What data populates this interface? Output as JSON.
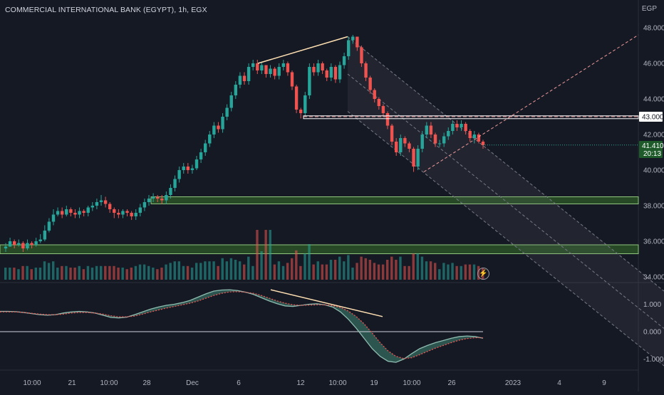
{
  "header": {
    "title": "COMMERCIAL INTERNATIONAL BANK (EGYPT), 1h, EGX",
    "currency": "EGP"
  },
  "price_axis": {
    "ticks": [
      "48.000",
      "46.000",
      "44.000",
      "42.000",
      "40.000",
      "38.000",
      "36.000",
      "34.000"
    ],
    "marker_43": "43.000",
    "last_price": "41.410",
    "countdown": "20:13"
  },
  "osc_axis": {
    "ticks": [
      "1.000",
      "0.000",
      "-1.000"
    ]
  },
  "time_axis": {
    "ticks": [
      "10:00",
      "21",
      "10:00",
      "28",
      "Dec",
      "6",
      "12",
      "10:00",
      "19",
      "10:00",
      "26",
      "2023",
      "4",
      "9"
    ]
  },
  "colors": {
    "background": "#151924",
    "up": "#26a69a",
    "down": "#ef5350",
    "zone_fill": "#2e5a26",
    "zone_border": "#8fc57c",
    "last_price_bg": "#1e5a2a",
    "channel": "#787b86",
    "trendline": "#ffe0b2",
    "resistance": "#ef9a9a",
    "osc_fill": "#2f5c55"
  },
  "icons": {
    "alert": "lightning-icon"
  },
  "chart_data": [
    {
      "type": "candlestick",
      "title": "COMMERCIAL INTERNATIONAL BANK (EGYPT), 1h, EGX",
      "ylabel": "EGP",
      "ylim": [
        33.9,
        48.3
      ],
      "grid": false,
      "x_ticks": [
        "10:00",
        "21",
        "10:00",
        "28",
        "Dec",
        "6",
        "12",
        "10:00",
        "19",
        "10:00",
        "26",
        "2023",
        "4",
        "9"
      ],
      "close": [
        35.7,
        36.0,
        35.8,
        35.9,
        35.6,
        35.9,
        35.8,
        36.0,
        36.1,
        36.6,
        37.1,
        37.5,
        37.7,
        37.5,
        37.8,
        37.6,
        37.5,
        37.7,
        37.6,
        37.9,
        38.0,
        38.2,
        38.3,
        38.1,
        37.8,
        37.6,
        37.5,
        37.7,
        37.6,
        37.4,
        37.6,
        37.9,
        38.2,
        38.4,
        38.5,
        38.4,
        38.3,
        38.6,
        39.0,
        39.5,
        40.0,
        40.2,
        40.0,
        40.1,
        40.6,
        41.0,
        41.5,
        42.0,
        42.5,
        42.3,
        43.0,
        43.5,
        44.2,
        44.8,
        45.3,
        45.0,
        45.8,
        46.0,
        45.6,
        45.9,
        45.4,
        45.7,
        45.3,
        45.8,
        46.0,
        45.5,
        44.7,
        43.4,
        43.2,
        44.2,
        45.8,
        45.5,
        46.0,
        45.6,
        45.2,
        45.8,
        45.1,
        45.9,
        46.4,
        47.3,
        47.5,
        46.9,
        46.0,
        45.2,
        44.5,
        44.0,
        43.6,
        43.2,
        42.5,
        41.6,
        41.0,
        41.8,
        41.5,
        41.2,
        40.2,
        41.2,
        42.0,
        42.5,
        42.0,
        41.5,
        41.5,
        41.9,
        42.2,
        42.6,
        42.4,
        42.6,
        42.2,
        41.8,
        42.0,
        41.6,
        41.4
      ],
      "high": [
        35.9,
        36.2,
        36.1,
        36.1,
        36.0,
        36.1,
        36.0,
        36.2,
        36.4,
        36.9,
        37.3,
        37.8,
        37.9,
        37.9,
        38.0,
        37.9,
        37.8,
        37.9,
        37.8,
        38.0,
        38.2,
        38.4,
        38.6,
        38.5,
        38.2,
        37.9,
        37.8,
        37.8,
        37.8,
        37.7,
        37.8,
        38.1,
        38.4,
        38.6,
        38.7,
        38.6,
        38.6,
        38.8,
        39.2,
        39.7,
        40.2,
        40.4,
        40.4,
        40.3,
        40.8,
        41.2,
        41.7,
        42.2,
        42.7,
        42.7,
        43.2,
        43.7,
        44.4,
        45.0,
        45.5,
        45.5,
        46.0,
        46.2,
        46.2,
        46.1,
        45.9,
        45.9,
        45.8,
        46.0,
        46.2,
        46.1,
        45.6,
        44.8,
        43.5,
        44.4,
        46.0,
        46.0,
        46.2,
        46.1,
        45.7,
        46.0,
        45.9,
        46.1,
        46.6,
        47.5,
        47.6,
        47.5,
        47.0,
        46.1,
        45.3,
        44.6,
        44.1,
        43.7,
        43.3,
        42.6,
        41.8,
        42.0,
        41.9,
        41.6,
        41.3,
        41.4,
        42.2,
        42.7,
        42.7,
        42.1,
        41.7,
        42.1,
        42.4,
        42.8,
        42.8,
        42.8,
        42.7,
        42.3,
        42.2,
        42.1,
        41.7
      ],
      "low": [
        35.4,
        35.7,
        35.6,
        35.7,
        35.4,
        35.5,
        35.6,
        35.7,
        35.9,
        36.0,
        36.5,
        36.9,
        37.4,
        37.3,
        37.4,
        37.4,
        37.3,
        37.3,
        37.4,
        37.4,
        37.7,
        37.8,
        38.0,
        37.9,
        37.6,
        37.3,
        37.3,
        37.3,
        37.4,
        37.2,
        37.2,
        37.4,
        37.7,
        38.0,
        38.2,
        38.2,
        38.1,
        38.1,
        38.4,
        38.8,
        39.3,
        39.8,
        39.8,
        39.8,
        40.0,
        40.4,
        40.8,
        41.3,
        41.8,
        42.1,
        42.1,
        42.8,
        43.3,
        44.0,
        44.6,
        44.8,
        44.8,
        45.6,
        45.4,
        45.4,
        45.2,
        45.2,
        45.1,
        45.1,
        45.6,
        45.3,
        44.5,
        43.2,
        42.9,
        43.0,
        44.0,
        45.3,
        45.3,
        45.4,
        45.0,
        45.0,
        44.9,
        44.9,
        45.7,
        46.2,
        47.1,
        46.7,
        45.8,
        45.0,
        44.3,
        43.8,
        43.4,
        43.0,
        42.3,
        41.4,
        40.8,
        40.8,
        41.3,
        41.0,
        39.9,
        40.0,
        41.0,
        41.8,
        41.8,
        41.3,
        41.3,
        41.3,
        41.7,
        42.0,
        42.2,
        42.2,
        42.0,
        41.6,
        41.5,
        41.5,
        41.2
      ],
      "volume_scale": "relative",
      "annotations": {
        "resistance_level": 43.0,
        "last_price": 41.41,
        "demand_zones": [
          [
            38.1,
            38.5
          ],
          [
            35.3,
            35.8
          ]
        ],
        "falling_channel": true,
        "bearish_divergence": true
      }
    },
    {
      "type": "line",
      "ylabel": "",
      "ylim": [
        -1.25,
        1.7
      ],
      "y_ticks": [
        "1.000",
        "0.000",
        "-1.000"
      ],
      "series": [
        {
          "values": [
            0.74,
            0.74,
            0.73,
            0.7,
            0.66,
            0.62,
            0.6,
            0.62,
            0.68,
            0.72,
            0.74,
            0.72,
            0.68,
            0.6,
            0.52,
            0.5,
            0.53,
            0.62,
            0.72,
            0.82,
            0.9,
            0.96,
            1.0,
            1.06,
            1.14,
            1.26,
            1.38,
            1.48,
            1.52,
            1.53,
            1.5,
            1.44,
            1.36,
            1.24,
            1.12,
            1.02,
            0.94,
            0.92,
            0.96,
            1.0,
            1.02,
            0.98,
            0.9,
            0.72,
            0.45,
            0.12,
            -0.25,
            -0.62,
            -0.9,
            -1.08,
            -1.12,
            -1.0,
            -0.8,
            -0.62,
            -0.5,
            -0.4,
            -0.32,
            -0.24,
            -0.18,
            -0.16,
            -0.18,
            -0.24
          ]
        },
        {
          "values": [
            0.72,
            0.72,
            0.72,
            0.7,
            0.67,
            0.64,
            0.62,
            0.62,
            0.64,
            0.68,
            0.7,
            0.7,
            0.68,
            0.64,
            0.58,
            0.54,
            0.54,
            0.57,
            0.64,
            0.72,
            0.79,
            0.86,
            0.92,
            0.98,
            1.04,
            1.12,
            1.22,
            1.32,
            1.4,
            1.45,
            1.46,
            1.44,
            1.4,
            1.32,
            1.22,
            1.12,
            1.04,
            0.98,
            0.96,
            0.97,
            0.98,
            0.98,
            0.95,
            0.88,
            0.75,
            0.55,
            0.28,
            -0.05,
            -0.4,
            -0.7,
            -0.9,
            -0.98,
            -0.95,
            -0.84,
            -0.72,
            -0.6,
            -0.5,
            -0.4,
            -0.31,
            -0.25,
            -0.22,
            -0.22
          ]
        }
      ]
    }
  ]
}
